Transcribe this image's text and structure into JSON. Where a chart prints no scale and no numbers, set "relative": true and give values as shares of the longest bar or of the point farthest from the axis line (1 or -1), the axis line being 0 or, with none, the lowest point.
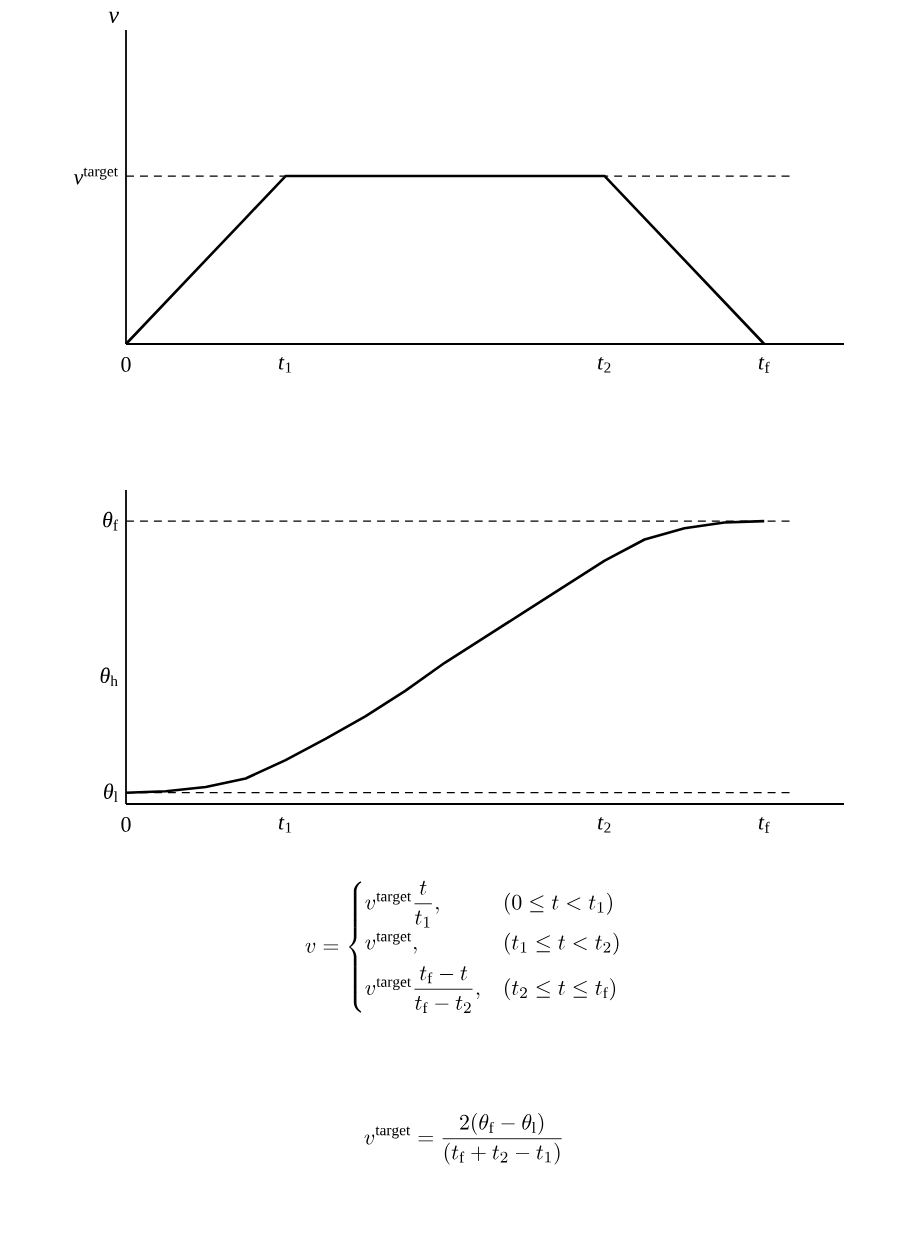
{
  "chart_data": [
    {
      "type": "line",
      "ylabel": "*v*",
      "relative": true,
      "categories": [
        "0",
        null,
        null,
        null,
        "*t*$_{1}$",
        null,
        null,
        null,
        null,
        null,
        null,
        null,
        "*t*$_{2}$",
        null,
        null,
        null,
        "*t*$_{f}$",
        null,
        null
      ],
      "series": [
        {
          "color": "#000000",
          "line_style": "solid",
          "values": [
            0,
            0.25,
            0.5,
            0.75,
            1,
            1,
            1,
            1,
            1,
            1,
            1,
            1,
            1,
            0.75,
            0.5,
            0.25,
            0,
            null,
            null
          ]
        }
      ],
      "ref_lines": [
        {
          "axis": "y",
          "value": 1,
          "label": "*v*$^{target}$",
          "color": "#000000",
          "line_style": "dashed"
        }
      ]
    },
    {
      "type": "line",
      "relative": true,
      "categories": [
        "0",
        null,
        null,
        null,
        "*t*$_{1}$",
        null,
        null,
        null,
        null,
        null,
        null,
        null,
        "*t*$_{2}$",
        null,
        null,
        null,
        "*t*$_{f}$",
        null,
        null
      ],
      "series": [
        {
          "color": "#000000",
          "line_style": "solid",
          "values": [
            0.04,
            0.045,
            0.06,
            0.09,
            0.155,
            0.23,
            0.31,
            0.4,
            0.5,
            0.59,
            0.68,
            0.77,
            0.86,
            0.935,
            0.975,
            0.995,
            1.0,
            null,
            null
          ]
        }
      ],
      "ref_lines": [
        {
          "axis": "y",
          "value": 0.04,
          "label": "*θ*$_{l}$",
          "color": "#000000",
          "line_style": "dashed"
        },
        {
          "axis": "y",
          "value": 1,
          "label": "*θ*$_{f}$",
          "color": "#000000",
          "line_style": "dashed"
        }
      ],
      "annotations": [
        "*θ*$_{h}$",
        "v=\\begin{cases} v^{\\mathrm{target}}\\dfrac{t}{t_1}, & (0\\le t<t_1)\\\\[4pt] v^{\\mathrm{target}}, & (t_1\\le t<t_2)\\\\[4pt] v^{\\mathrm{target}}\\dfrac{t_\\mathrm{f}-t}{t_\\mathrm{f}-t_2}, & (t_2\\le t\\le t_\\mathrm{f})\\end{cases}",
        "v^{\\mathrm{target}}=\\dfrac{2(\\theta_\\mathrm{f}-\\theta_\\mathrm{l})}{(t_\\mathrm{f}+t_2-t_1)}"
      ]
    }
  ]
}
